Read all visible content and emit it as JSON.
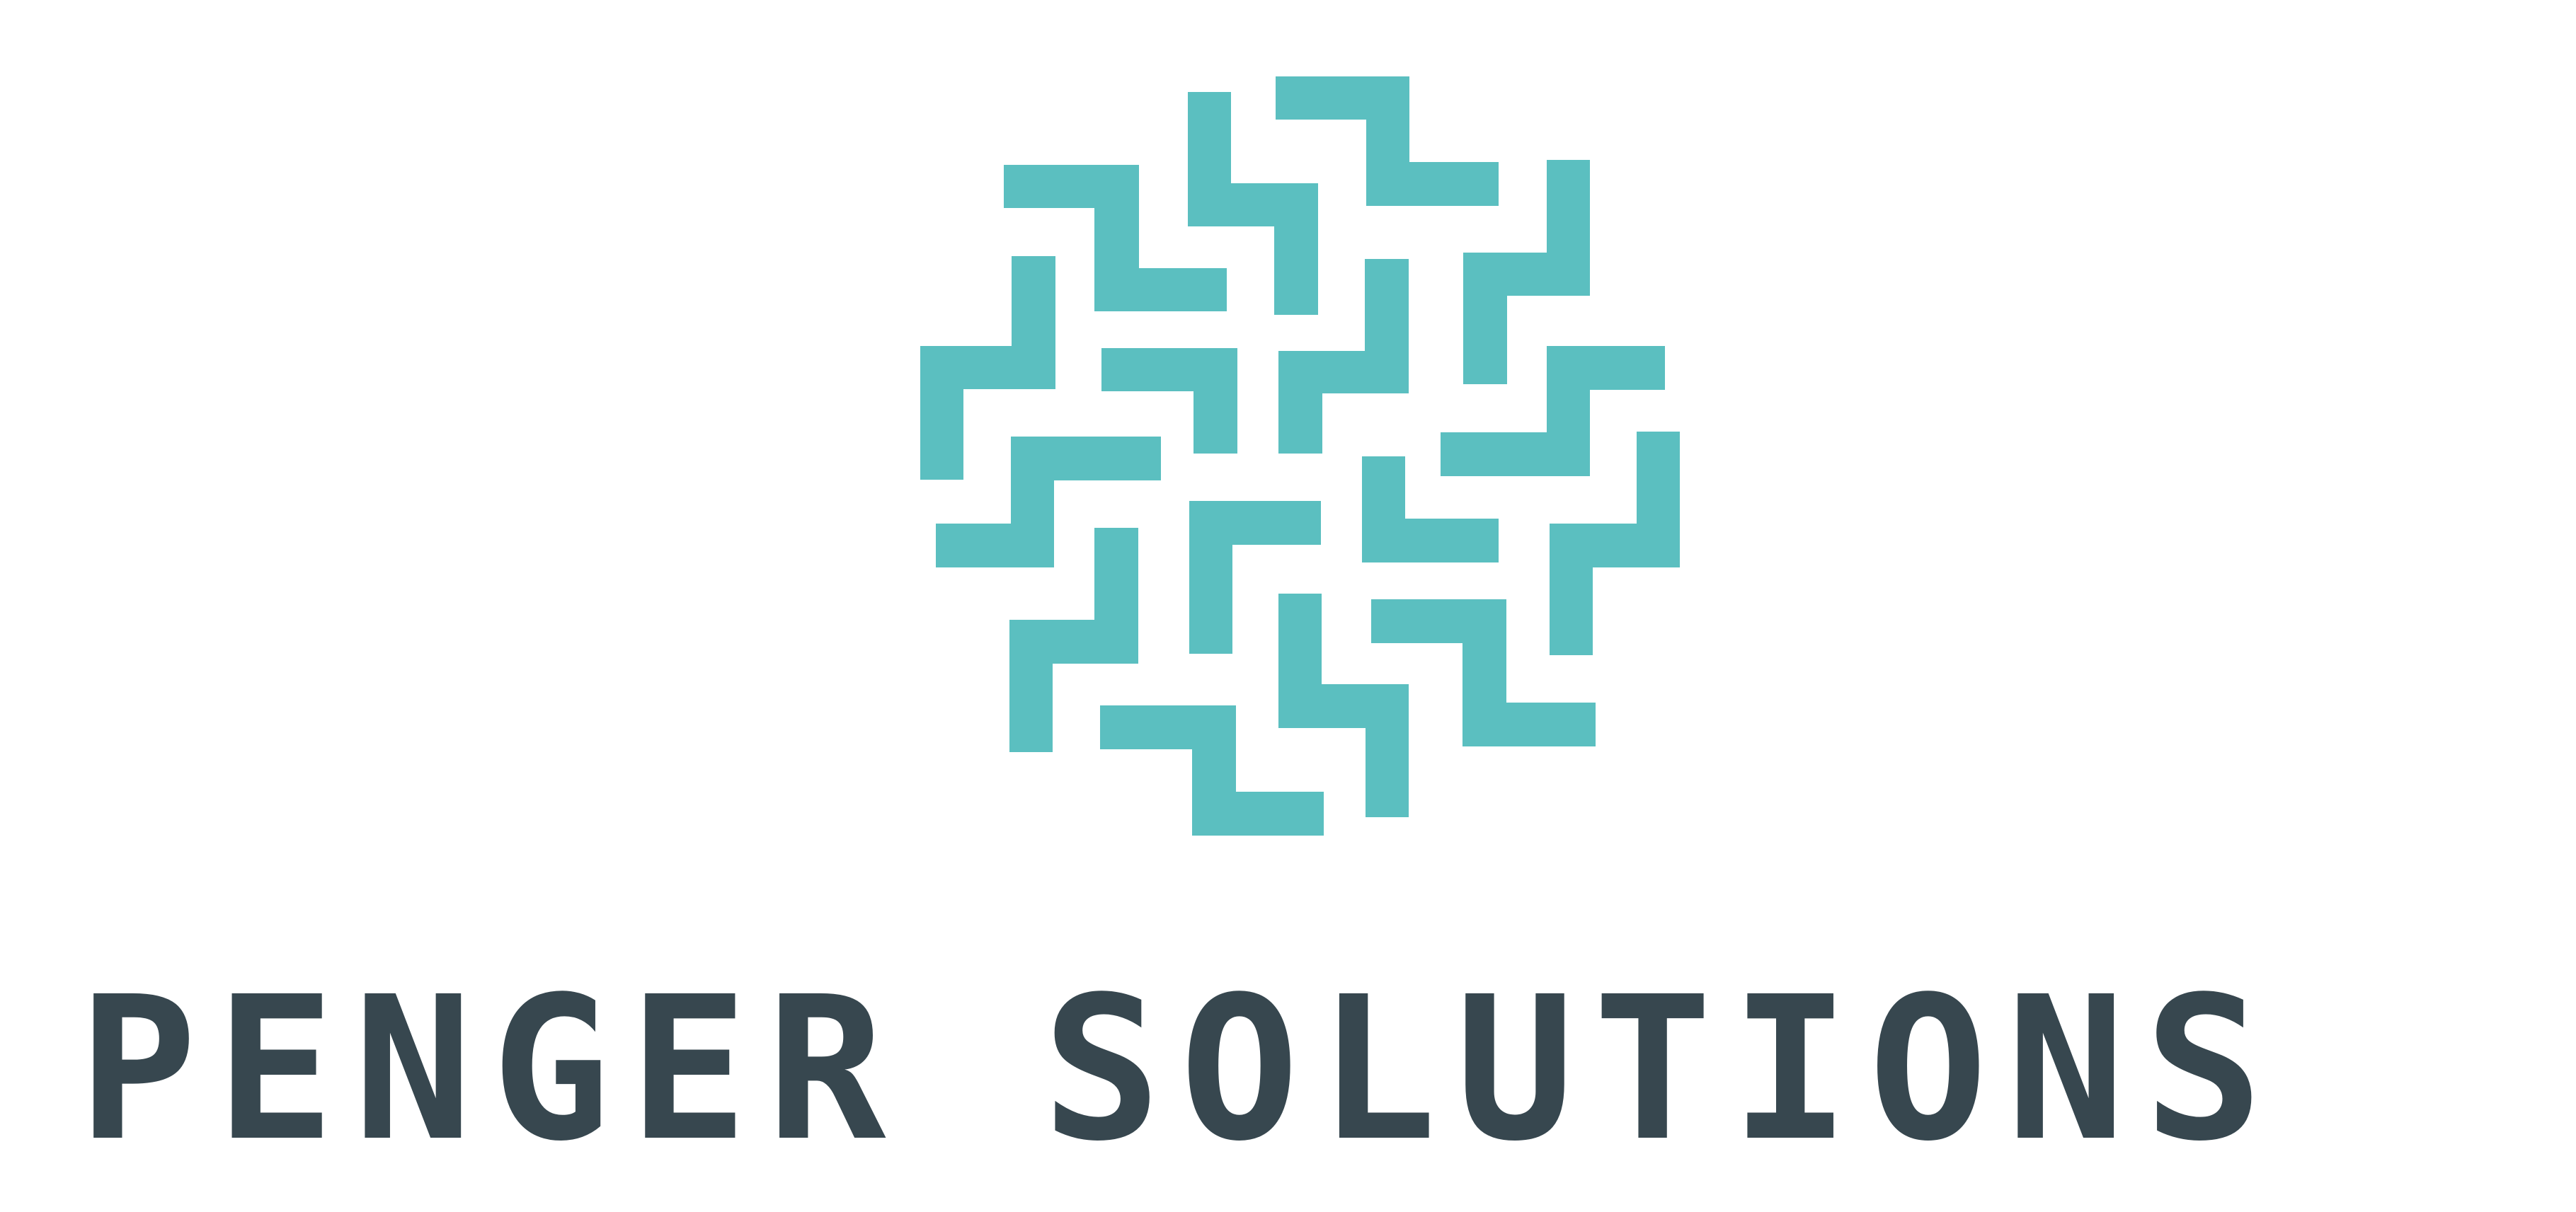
{
  "brand": {
    "name": "PENGER SOLUTIONS",
    "word_1": "PENGER",
    "word_2": "SOLUTIONS"
  },
  "colors": {
    "mark": "#5bbfc0",
    "text": "#37474f",
    "background": "#ffffff"
  }
}
